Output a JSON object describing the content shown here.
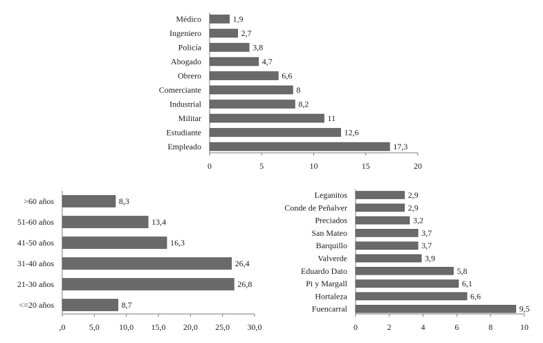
{
  "colors": {
    "bar": "#6a6a6a",
    "axis": "#7a7a7a",
    "text": "#1a1a1a"
  },
  "chart_data": [
    {
      "id": "profession",
      "type": "bar",
      "orientation": "horizontal",
      "categories": [
        "Médico",
        "Ingeniero",
        "Policía",
        "Abogado",
        "Obrero",
        "Comerciante",
        "Industrial",
        "Militar",
        "Estudiante",
        "Empleado"
      ],
      "values": [
        1.9,
        2.7,
        3.8,
        4.7,
        6.6,
        8,
        8.2,
        11,
        12.6,
        17.3
      ],
      "value_labels": [
        "1,9",
        "2,7",
        "3,8",
        "4,7",
        "6,6",
        "8",
        "8,2",
        "11",
        "12,6",
        "17,3"
      ],
      "xlim": [
        0,
        20
      ],
      "ticks": [
        0,
        5,
        10,
        15,
        20
      ],
      "tick_labels": [
        "0",
        "5",
        "10",
        "15",
        "20"
      ]
    },
    {
      "id": "age",
      "type": "bar",
      "orientation": "horizontal",
      "categories": [
        ">60 años",
        "51-60 años",
        "41-50 años",
        "31-40 años",
        "21-30 años",
        "<=20 años"
      ],
      "values": [
        8.3,
        13.4,
        16.3,
        26.4,
        26.8,
        8.7
      ],
      "value_labels": [
        "8,3",
        "13,4",
        "16,3",
        "26,4",
        "26,8",
        "8,7"
      ],
      "xlim": [
        0,
        30
      ],
      "ticks": [
        0,
        5,
        10,
        15,
        20,
        25,
        30
      ],
      "tick_labels": [
        ",0",
        "5,0",
        "10,0",
        "15,0",
        "20,0",
        "25,0",
        "30,0"
      ]
    },
    {
      "id": "street",
      "type": "bar",
      "orientation": "horizontal",
      "categories": [
        "Leganitos",
        "Conde de Peñalver",
        "Preciados",
        "San Mateo",
        "Barquillo",
        "Valverde",
        "Eduardo Dato",
        "Pi y Margall",
        "Hortaleza",
        "Fuencarral"
      ],
      "values": [
        2.9,
        2.9,
        3.2,
        3.7,
        3.7,
        3.9,
        5.8,
        6.1,
        6.6,
        9.5
      ],
      "value_labels": [
        "2,9",
        "2,9",
        "3,2",
        "3,7",
        "3,7",
        "3,9",
        "5,8",
        "6,1",
        "6,6",
        "9,5"
      ],
      "xlim": [
        0,
        10
      ],
      "ticks": [
        0,
        2,
        4,
        6,
        8,
        10
      ],
      "tick_labels": [
        "0",
        "2",
        "4",
        "6",
        "8",
        "10"
      ]
    }
  ]
}
